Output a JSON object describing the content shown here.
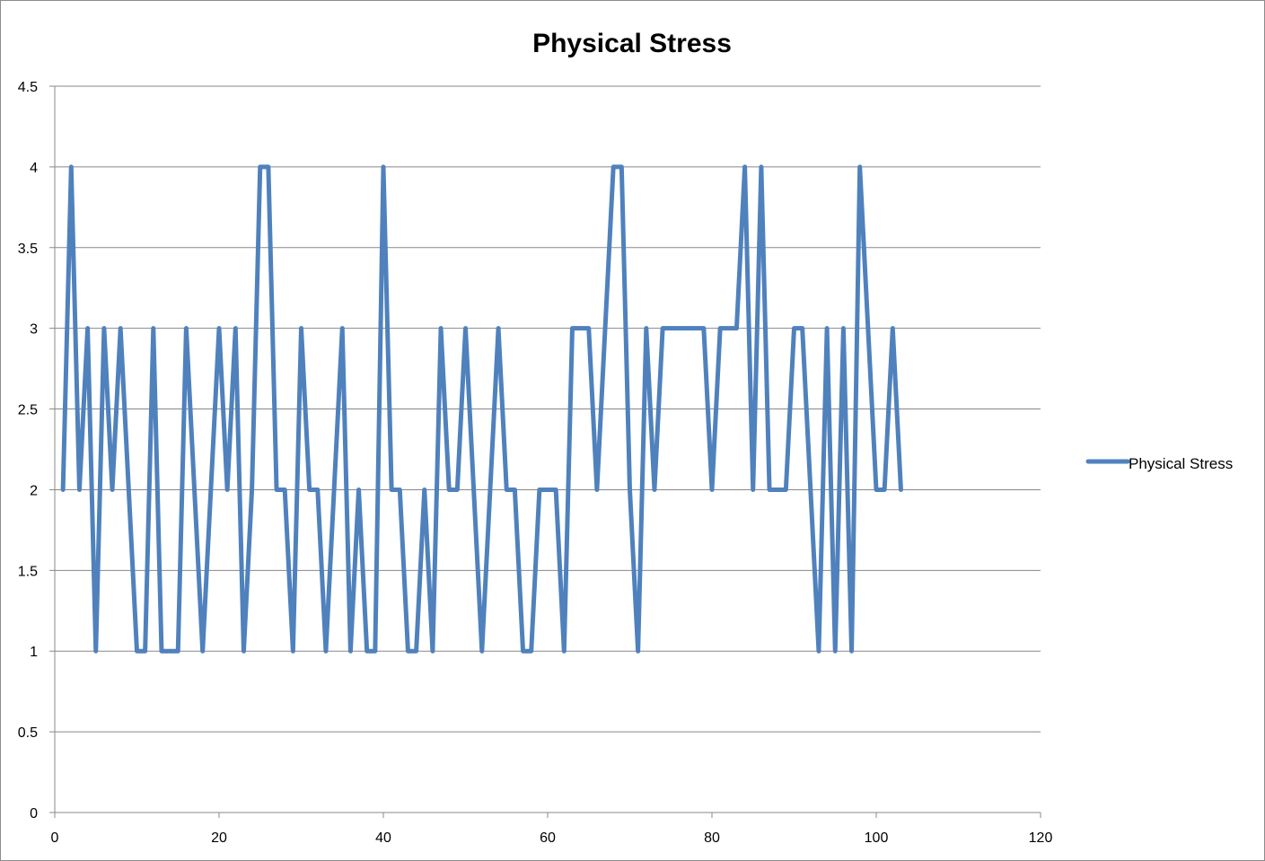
{
  "chart_data": {
    "type": "line",
    "title": "Physical Stress",
    "xlabel": "",
    "ylabel": "",
    "xlim": [
      0,
      120
    ],
    "ylim": [
      0,
      4.5
    ],
    "xticks": [
      0,
      20,
      40,
      60,
      80,
      100,
      120
    ],
    "yticks": [
      0,
      0.5,
      1,
      1.5,
      2,
      2.5,
      3,
      3.5,
      4,
      4.5
    ],
    "grid": "horizontal",
    "legend_position": "right",
    "colors": {
      "series": "#4f81bd",
      "grid": "#888888",
      "axis": "#888888"
    },
    "series": [
      {
        "name": "Physical Stress",
        "x": [
          1,
          2,
          3,
          4,
          5,
          6,
          7,
          8,
          9,
          10,
          11,
          12,
          13,
          14,
          15,
          16,
          17,
          18,
          19,
          20,
          21,
          22,
          23,
          24,
          25,
          26,
          27,
          28,
          29,
          30,
          31,
          32,
          33,
          34,
          35,
          36,
          37,
          38,
          39,
          40,
          41,
          42,
          43,
          44,
          45,
          46,
          47,
          48,
          49,
          50,
          51,
          52,
          53,
          54,
          55,
          56,
          57,
          58,
          59,
          60,
          61,
          62,
          63,
          64,
          65,
          66,
          67,
          68,
          69,
          70,
          71,
          72,
          73,
          74,
          75,
          76,
          77,
          78,
          79,
          80,
          81,
          82,
          83,
          84,
          85,
          86,
          87,
          88,
          89,
          90,
          91,
          92,
          93,
          94,
          95,
          96,
          97,
          98,
          99,
          100,
          101,
          102,
          103
        ],
        "values": [
          2,
          4,
          2,
          3,
          1,
          3,
          2,
          3,
          2,
          1,
          1,
          3,
          1,
          1,
          1,
          3,
          2,
          1,
          2,
          3,
          2,
          3,
          1,
          2,
          4,
          4,
          2,
          2,
          1,
          3,
          2,
          2,
          1,
          2,
          3,
          1,
          2,
          1,
          1,
          4,
          2,
          2,
          1,
          1,
          2,
          1,
          3,
          2,
          2,
          3,
          2,
          1,
          2,
          3,
          2,
          2,
          1,
          1,
          2,
          2,
          2,
          1,
          3,
          3,
          3,
          2,
          3,
          4,
          4,
          2,
          1,
          3,
          2,
          3,
          3,
          3,
          3,
          3,
          3,
          2,
          3,
          3,
          3,
          4,
          2,
          4,
          2,
          2,
          2,
          3,
          3,
          2,
          1,
          3,
          1,
          3,
          1,
          4,
          3,
          2,
          2,
          3,
          2
        ]
      }
    ]
  }
}
